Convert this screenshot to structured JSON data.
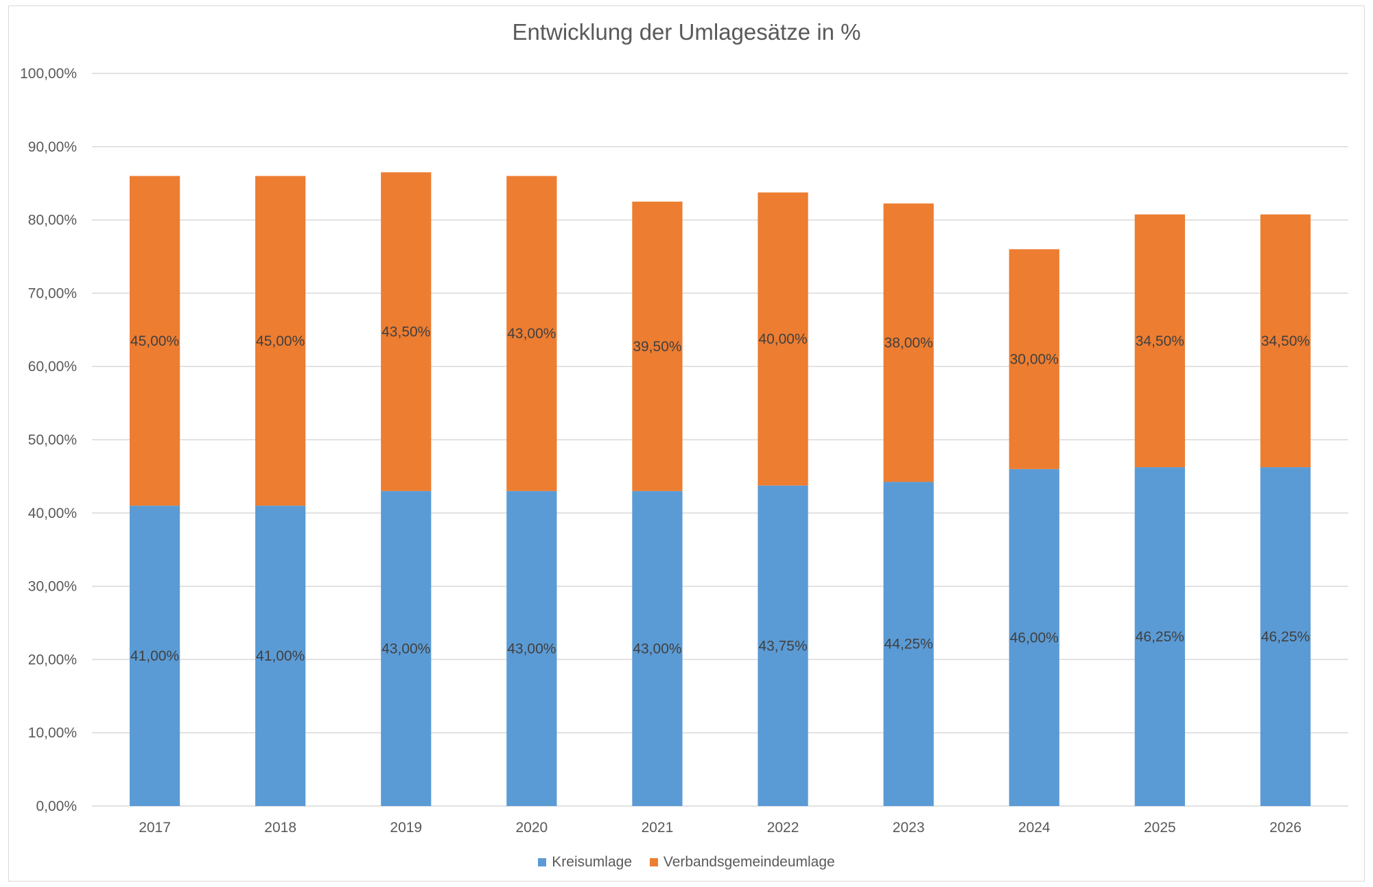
{
  "chart_data": {
    "type": "bar",
    "stacked": true,
    "title": "Entwicklung der Umlagesätze in %",
    "xlabel": "",
    "ylabel": "",
    "categories": [
      "2017",
      "2018",
      "2019",
      "2020",
      "2021",
      "2022",
      "2023",
      "2024",
      "2025",
      "2026"
    ],
    "series": [
      {
        "name": "Kreisumlage",
        "color": "#5B9BD5",
        "values": [
          41.0,
          41.0,
          43.0,
          43.0,
          43.0,
          43.75,
          44.25,
          46.0,
          46.25,
          46.25
        ],
        "labels": [
          "41,00%",
          "41,00%",
          "43,00%",
          "43,00%",
          "43,00%",
          "43,75%",
          "44,25%",
          "46,00%",
          "46,25%",
          "46,25%"
        ]
      },
      {
        "name": "Verbandsgemeindeumlage",
        "color": "#ED7D31",
        "values": [
          45.0,
          45.0,
          43.5,
          43.0,
          39.5,
          40.0,
          38.0,
          30.0,
          34.5,
          34.5
        ],
        "labels": [
          "45,00%",
          "45,00%",
          "43,50%",
          "43,00%",
          "39,50%",
          "40,00%",
          "38,00%",
          "30,00%",
          "34,50%",
          "34,50%"
        ]
      }
    ],
    "ylim": [
      0,
      100
    ],
    "yticks": [
      0,
      10,
      20,
      30,
      40,
      50,
      60,
      70,
      80,
      90,
      100
    ],
    "ytick_labels": [
      "0,00%",
      "10,00%",
      "20,00%",
      "30,00%",
      "40,00%",
      "50,00%",
      "60,00%",
      "70,00%",
      "80,00%",
      "90,00%",
      "100,00%"
    ],
    "grid": true,
    "legend_position": "bottom"
  }
}
